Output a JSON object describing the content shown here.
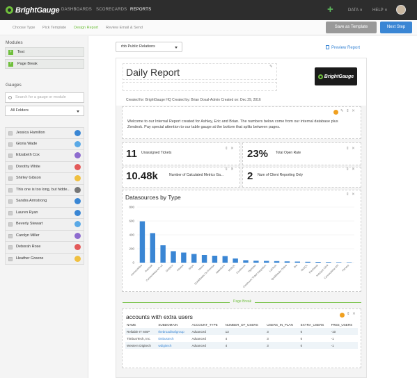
{
  "topbar": {
    "brand": "BrightGauge",
    "nav": [
      "DASHBOARDS",
      "SCORECARDS",
      "REPORTS"
    ],
    "active_nav": "REPORTS",
    "plus": "+",
    "data_menu": "DATA ∨",
    "help_menu": "HELP ∨"
  },
  "steps": [
    "Choose Type",
    "Pick Template",
    "Design Report",
    "Review Email & Send"
  ],
  "active_step": "Design Report",
  "buttons": {
    "save_template": "Save as Template",
    "next_step": "Next Step"
  },
  "sidebar": {
    "modules_heading": "Modules",
    "modules": [
      "Text",
      "Page Break"
    ],
    "gauges_heading": "Gauges",
    "search_placeholder": "Search for a gauge or module",
    "folder_select": "All Folders",
    "gauges": [
      {
        "name": "Jessica Hamilton",
        "color": "#3a86d4"
      },
      {
        "name": "Gloria Wade",
        "color": "#5aa9e6"
      },
      {
        "name": "Elizabeth Cox",
        "color": "#8e6ccf"
      },
      {
        "name": "Dorothy White",
        "color": "#e35a5a"
      },
      {
        "name": "Shirley Gibson",
        "color": "#f0c040"
      },
      {
        "name": "This one is too long, but hidde...",
        "color": "#777777"
      },
      {
        "name": "Sandra Armstrong",
        "color": "#3a86d4"
      },
      {
        "name": "Lauren Ryan",
        "color": "#3a86d4"
      },
      {
        "name": "Beverly Stewart",
        "color": "#5aa9e6"
      },
      {
        "name": "Carolyn Miller",
        "color": "#8e6ccf"
      },
      {
        "name": "Deborah Rose",
        "color": "#e35a5a"
      },
      {
        "name": "Heather Greene",
        "color": "#f0c040"
      }
    ]
  },
  "template_select": "rbb Public Relations",
  "preview_link": "Preview Report",
  "report": {
    "title": "Daily Report",
    "logo_text": "BrightGauge",
    "created_line": "Created for: BrightGauge HQ  Created by: Brian Dosal-Admin  Created on: Dec 29, 2016",
    "intro": "Welcome to our Internal Report created for Ashley, Eric and Brian.  The numbers below come from our internal database plus Zendesk.  Pay special attention to our table gauge at the bottom that splits between pages.",
    "kpis": [
      {
        "value": "11",
        "label": "Unassigned Tickets"
      },
      {
        "value": "23%",
        "label": "Total Open Rate"
      },
      {
        "value": "10.48k",
        "label": "Number of Calculated Metrics Ga..."
      },
      {
        "value": "2",
        "label": "Num of Client Reporting Only"
      }
    ],
    "page_break": "Page Break",
    "table_title": "accounts with extra users",
    "table": {
      "columns": [
        "NAME",
        "SUBDOMAIN",
        "ACCOUNT_TYPE",
        "NUMBER_OF_USERS",
        "USERS_IN_PLAN",
        "EXTRA_USERS",
        "FREE_USERS"
      ],
      "rows": [
        [
          "Reliable IT MSP",
          "thebroadleafgroup",
          "Advanced",
          "13",
          "3",
          "0",
          "-10"
        ],
        [
          "TimbusTech, Inc.",
          "timbustech",
          "Advanced",
          "4",
          "3",
          "0",
          "-1"
        ],
        [
          "Western Digitech",
          "wdigitech",
          "Advanced",
          "4",
          "3",
          "0",
          "-1"
        ]
      ]
    }
  },
  "chart_data": {
    "type": "bar",
    "title": "Datasources by Type",
    "xlabel": "",
    "ylabel": "",
    "ylim": [
      0,
      800
    ],
    "yticks": [
      0,
      200,
      400,
      600,
      800
    ],
    "color": "#3a86d4",
    "categories": [
      "ConnectWise",
      "Autotask",
      "ConnectWise API v2",
      "Dropbox",
      "Kaseya",
      "Stripe",
      "Nexus",
      "QuickBooks On-Premise",
      "Salesforce",
      "MSSQL",
      "Continuum",
      "Tigerpaw",
      "Continuum Ticket Integration",
      "LabTech",
      "QuickBooks Online",
      "Jira",
      "MySQL",
      "Freshdesk",
      "HubSpot CRM",
      "ConnectWise API",
      "Harvest"
    ],
    "values": [
      595,
      425,
      250,
      165,
      145,
      125,
      110,
      100,
      95,
      60,
      35,
      28,
      25,
      22,
      18,
      15,
      12,
      10,
      8,
      6,
      5
    ]
  }
}
